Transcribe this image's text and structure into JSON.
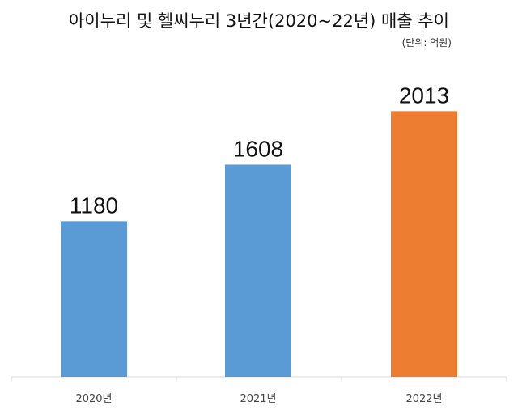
{
  "chart_data": {
    "type": "bar",
    "title": "아이누리 및 헬씨누리 3년간(2020~22년) 매출 추이",
    "unit_note": "(단위: 억원)",
    "categories": [
      "2020년",
      "2021년",
      "2022년"
    ],
    "values": [
      1180,
      1608,
      2013
    ],
    "data_labels": [
      "1180",
      "1608",
      "2013"
    ],
    "bar_colors": [
      "#5B9BD5",
      "#5B9BD5",
      "#ED7D31"
    ],
    "ylim": [
      0,
      2450
    ],
    "grid": false,
    "legend": "none"
  }
}
